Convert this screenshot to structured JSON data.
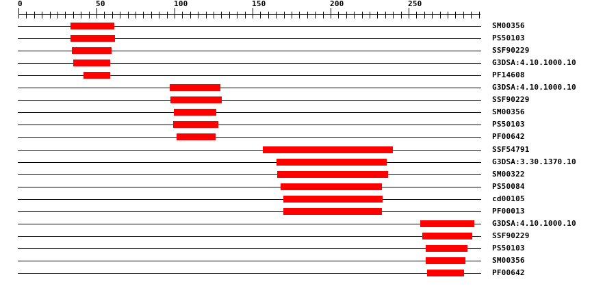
{
  "chart_data": {
    "type": "bar",
    "subtype": "horizontal-range-bars",
    "title": "",
    "description": "Protein signature match diagram: each row is one signature; red bar spans matched residue range on the sequence ruler",
    "axis": {
      "position": "top",
      "min": 0,
      "max": 295,
      "minor_tick_step": 5,
      "major_tick_step": 50,
      "major_tick_labels": [
        "0",
        "50",
        "100",
        "150",
        "200",
        "250"
      ]
    },
    "legend_position": "right-of-rows",
    "grid": false,
    "colors": {
      "bar": "#ff0000",
      "axis": "#000000",
      "text": "#000000",
      "background": "#ffffff"
    },
    "rows": [
      {
        "label": "SM00356",
        "start": 33.4,
        "end": 61.3
      },
      {
        "label": "PS50103",
        "start": 33.4,
        "end": 61.9
      },
      {
        "label": "SSF90229",
        "start": 34.2,
        "end": 59.7
      },
      {
        "label": "G3DSA:4.10.1000.10",
        "start": 35.2,
        "end": 58.8
      },
      {
        "label": "PF14608",
        "start": 41.6,
        "end": 58.8
      },
      {
        "label": "G3DSA:4.10.1000.10",
        "start": 97.1,
        "end": 129.6
      },
      {
        "label": "SSF90229",
        "start": 97.5,
        "end": 130.5
      },
      {
        "label": "SM00356",
        "start": 99.4,
        "end": 126.7
      },
      {
        "label": "PS50103",
        "start": 99.1,
        "end": 127.9
      },
      {
        "label": "PF00642",
        "start": 101.5,
        "end": 126.4
      },
      {
        "label": "SSF54791",
        "start": 156.7,
        "end": 240.0
      },
      {
        "label": "G3DSA:3.30.1370.10",
        "start": 165.2,
        "end": 236.0
      },
      {
        "label": "SM00322",
        "start": 165.9,
        "end": 236.9
      },
      {
        "label": "PS50084",
        "start": 167.8,
        "end": 232.5
      },
      {
        "label": "cd00105",
        "start": 169.6,
        "end": 233.2
      },
      {
        "label": "PF00013",
        "start": 169.6,
        "end": 232.8
      },
      {
        "label": "G3DSA:4.10.1000.10",
        "start": 257.4,
        "end": 292.1
      },
      {
        "label": "SSF90229",
        "start": 258.9,
        "end": 290.7
      },
      {
        "label": "PS50103",
        "start": 261.1,
        "end": 287.8
      },
      {
        "label": "SM00356",
        "start": 261.1,
        "end": 286.6
      },
      {
        "label": "PF00642",
        "start": 261.8,
        "end": 285.6
      }
    ]
  }
}
